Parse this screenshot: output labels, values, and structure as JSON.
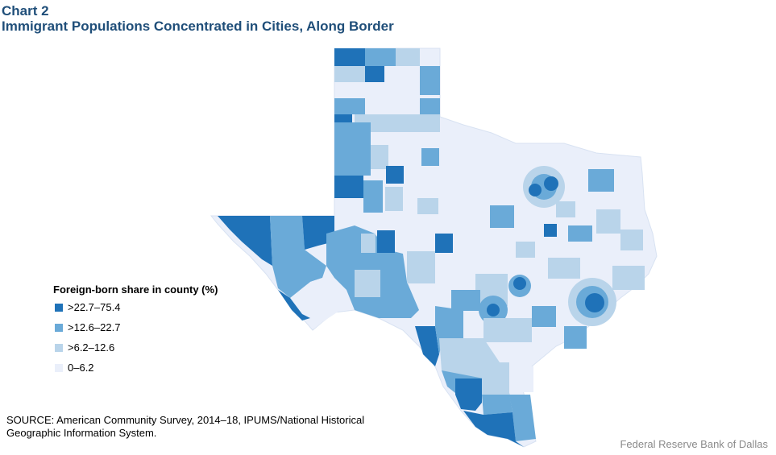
{
  "chart": {
    "label": "Chart 2",
    "title": "Immigrant Populations Concentrated in Cities, Along Border"
  },
  "legend": {
    "title": "Foreign-born share in county (%)",
    "items": [
      {
        "label": ">22.7–75.4",
        "color": "#1f72b8"
      },
      {
        "label": ">12.6–22.7",
        "color": "#6aaad8"
      },
      {
        "label": ">6.2–12.6",
        "color": "#b9d4ea"
      },
      {
        "label": "0–6.2",
        "color": "#eaeffa"
      }
    ]
  },
  "source": "SOURCE: American Community Survey, 2014–18, IPUMS/National Historical Geographic Information System.",
  "credit": "Federal Reserve Bank of Dallas",
  "colors": {
    "title": "#1f4e79",
    "state_base": "#eaeffa"
  }
}
